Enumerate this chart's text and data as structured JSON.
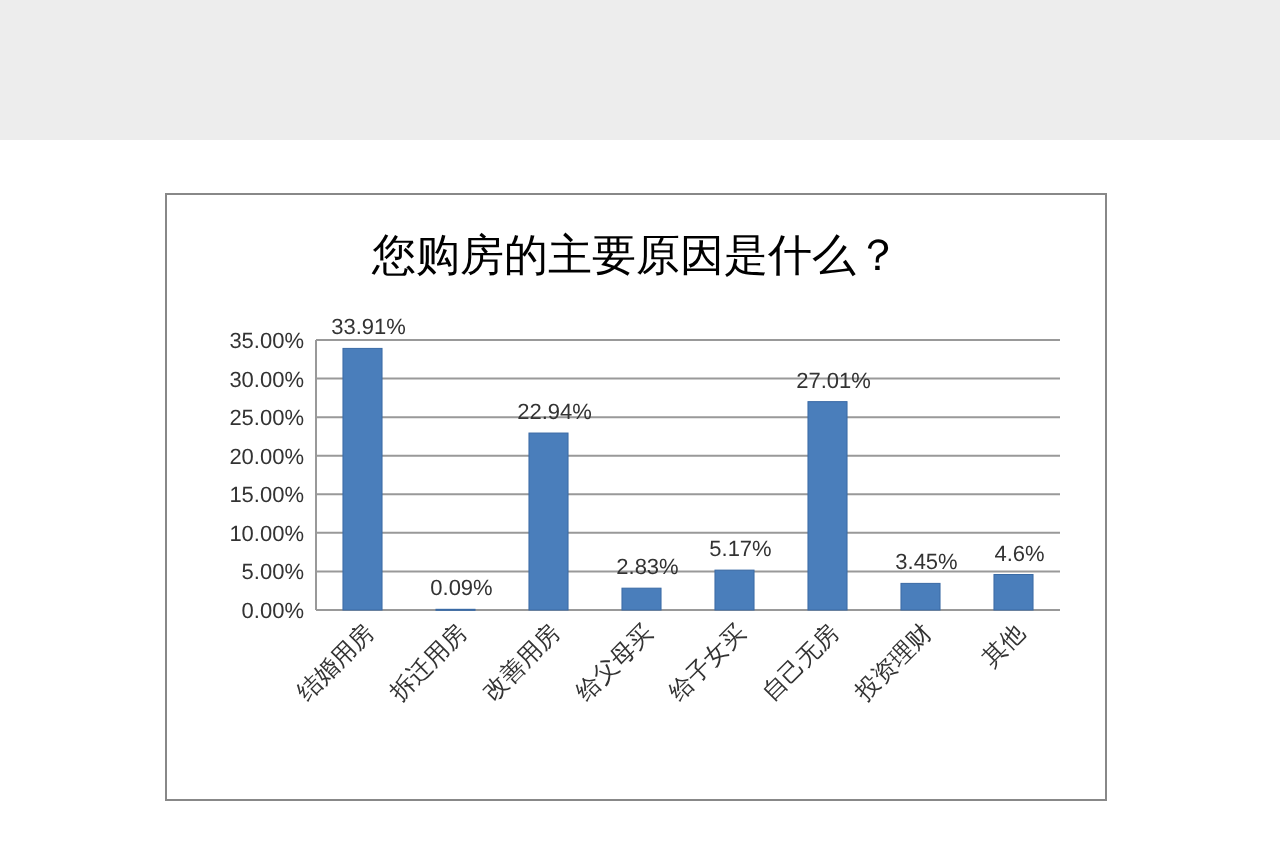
{
  "chart_data": {
    "type": "bar",
    "title": "您购房的主要原因是什么？",
    "categories": [
      "结婚用房",
      "拆迁用房",
      "改善用房",
      "给父母买",
      "给子女买",
      "自己无房",
      "投资理财",
      "其他"
    ],
    "values": [
      33.91,
      0.09,
      22.94,
      2.83,
      5.17,
      27.01,
      3.45,
      4.6
    ],
    "value_labels": [
      "33.91%",
      "0.09%",
      "22.94%",
      "2.83%",
      "5.17%",
      "27.01%",
      "3.45%",
      "4.6%"
    ],
    "color": "#4a7ebb",
    "ylim": [
      0,
      35
    ],
    "yticks": [
      {
        "value": 0,
        "label": "0.00%"
      },
      {
        "value": 5,
        "label": "5.00%"
      },
      {
        "value": 10,
        "label": "10.00%"
      },
      {
        "value": 15,
        "label": "15.00%"
      },
      {
        "value": 20,
        "label": "20.00%"
      },
      {
        "value": 25,
        "label": "25.00%"
      },
      {
        "value": 30,
        "label": "30.00%"
      },
      {
        "value": 35,
        "label": "35.00%"
      }
    ],
    "grid": "y"
  }
}
